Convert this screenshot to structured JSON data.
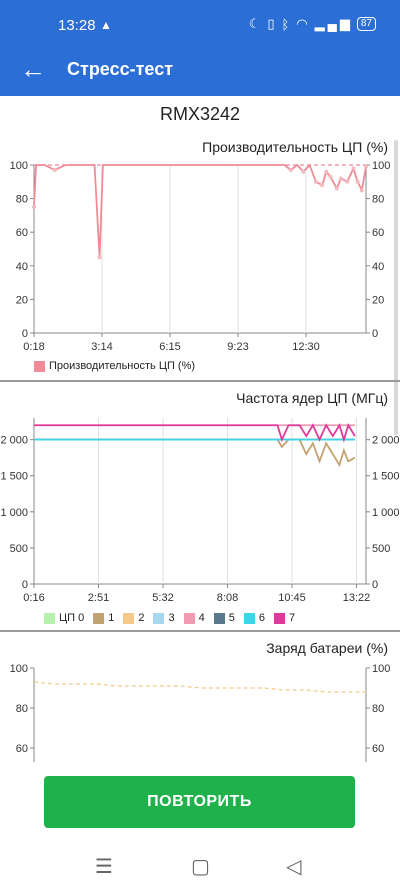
{
  "status_bar": {
    "time": "13:28",
    "battery": "87"
  },
  "app_bar": {
    "title": "Стресс-тест"
  },
  "device_name": "RMX3242",
  "cpu_perf": {
    "chart_data": {
      "type": "line",
      "title": "Производительность ЦП (%)",
      "x_tick_labels": [
        "0:18",
        "3:14",
        "6:15",
        "9:23",
        "12:30"
      ],
      "ylim": [
        0,
        100
      ],
      "y_ticks": [
        0,
        20,
        40,
        60,
        80,
        100
      ],
      "legend_position": "bottom-left",
      "grid": "vertical",
      "series": [
        {
          "name": "Производительность ЦП (%)",
          "color": "#f08a96",
          "x": [
            0,
            0.1,
            0.5,
            1,
            1.5,
            1.8,
            2.6,
            2.9,
            3.14,
            3.3,
            3.6,
            4.3,
            5.3,
            6.0,
            7.0,
            8.0,
            9.0,
            10.0,
            11.0,
            12.0,
            12.3,
            12.6,
            12.9,
            13.2,
            13.5,
            13.8,
            14.0,
            14.2,
            14.5,
            14.7,
            15.0,
            15.3,
            15.5,
            15.7,
            15.9
          ],
          "values": [
            75,
            100,
            100,
            97,
            100,
            100,
            100,
            100,
            45,
            100,
            100,
            100,
            100,
            100,
            100,
            100,
            100,
            100,
            100,
            100,
            97,
            100,
            96,
            100,
            90,
            88,
            96,
            93,
            86,
            92,
            90,
            98,
            90,
            85,
            99
          ]
        },
        {
          "name": "",
          "color": "#f08a96",
          "dashed": true,
          "x": [
            0,
            15.9
          ],
          "values": [
            100,
            100
          ]
        }
      ]
    },
    "legend_label": "Производительность ЦП (%)"
  },
  "cpu_freq": {
    "chart_data": {
      "type": "line",
      "title": "Частота ядер ЦП (МГц)",
      "x_tick_labels": [
        "0:16",
        "2:51",
        "5:32",
        "8:08",
        "10:45",
        "13:22"
      ],
      "ylim": [
        0,
        2300
      ],
      "y_ticks": [
        0,
        500,
        1000,
        1500,
        2000
      ],
      "y_tick_labels": [
        "0",
        "500",
        "1 000",
        "1 500",
        "2 000"
      ],
      "legend_position": "bottom",
      "grid": "vertical",
      "series": [
        {
          "name": "ЦП 0",
          "color": "#b8f0b0",
          "x": [
            0,
            14.5
          ],
          "values": [
            2000,
            2000
          ]
        },
        {
          "name": "1",
          "color": "#c2a270",
          "x": [
            0,
            11.0,
            11.2,
            11.5,
            12.0,
            12.3,
            12.6,
            12.9,
            13.2,
            13.5,
            13.8,
            14.0,
            14.2,
            14.5
          ],
          "values": [
            2000,
            2000,
            1900,
            2000,
            2000,
            1800,
            1950,
            1700,
            1950,
            1800,
            1650,
            1850,
            1700,
            1750
          ]
        },
        {
          "name": "2",
          "color": "#f5c98a",
          "x": [
            0,
            14.5
          ],
          "values": [
            2000,
            2000
          ]
        },
        {
          "name": "3",
          "color": "#a8d8f0",
          "x": [
            0,
            14.5
          ],
          "values": [
            2000,
            2000
          ]
        },
        {
          "name": "4",
          "color": "#f29ab2",
          "x": [
            0,
            14.5
          ],
          "values": [
            2200,
            2200
          ]
        },
        {
          "name": "5",
          "color": "#587a8c",
          "x": [
            0,
            14.5
          ],
          "values": [
            2000,
            2000
          ]
        },
        {
          "name": "6",
          "color": "#3bd7e8",
          "x": [
            0,
            14.5
          ],
          "values": [
            2000,
            2000
          ]
        },
        {
          "name": "7",
          "color": "#e0399a",
          "x": [
            0,
            11.0,
            11.2,
            11.5,
            12.0,
            12.3,
            12.6,
            12.9,
            13.2,
            13.5,
            13.8,
            14.0,
            14.2,
            14.5
          ],
          "values": [
            2200,
            2200,
            2000,
            2200,
            2200,
            2050,
            2200,
            2000,
            2200,
            2050,
            2200,
            2000,
            2200,
            2050
          ]
        }
      ]
    },
    "legend": [
      {
        "label": "ЦП 0",
        "color": "#b8f0b0"
      },
      {
        "label": "1",
        "color": "#c2a270"
      },
      {
        "label": "2",
        "color": "#f5c98a"
      },
      {
        "label": "3",
        "color": "#a8d8f0"
      },
      {
        "label": "4",
        "color": "#f29ab2"
      },
      {
        "label": "5",
        "color": "#587a8c"
      },
      {
        "label": "6",
        "color": "#3bd7e8"
      },
      {
        "label": "7",
        "color": "#e0399a"
      }
    ]
  },
  "battery": {
    "chart_data": {
      "type": "line",
      "title": "Заряд батареи (%)",
      "ylim": [
        53,
        100
      ],
      "y_ticks": [
        60,
        80,
        100
      ],
      "series": [
        {
          "name": "",
          "color": "#f5c98a",
          "dashed": true,
          "x": [
            0,
            1,
            2,
            3,
            4,
            5,
            6,
            7,
            8,
            9,
            10,
            11,
            12,
            13,
            14,
            15,
            15.9
          ],
          "values": [
            93,
            92,
            92,
            92,
            91,
            91,
            91,
            91,
            90,
            90,
            90,
            90,
            89,
            89,
            88,
            88,
            88
          ]
        }
      ]
    }
  },
  "repeat_button": "ПОВТОРИТЬ"
}
